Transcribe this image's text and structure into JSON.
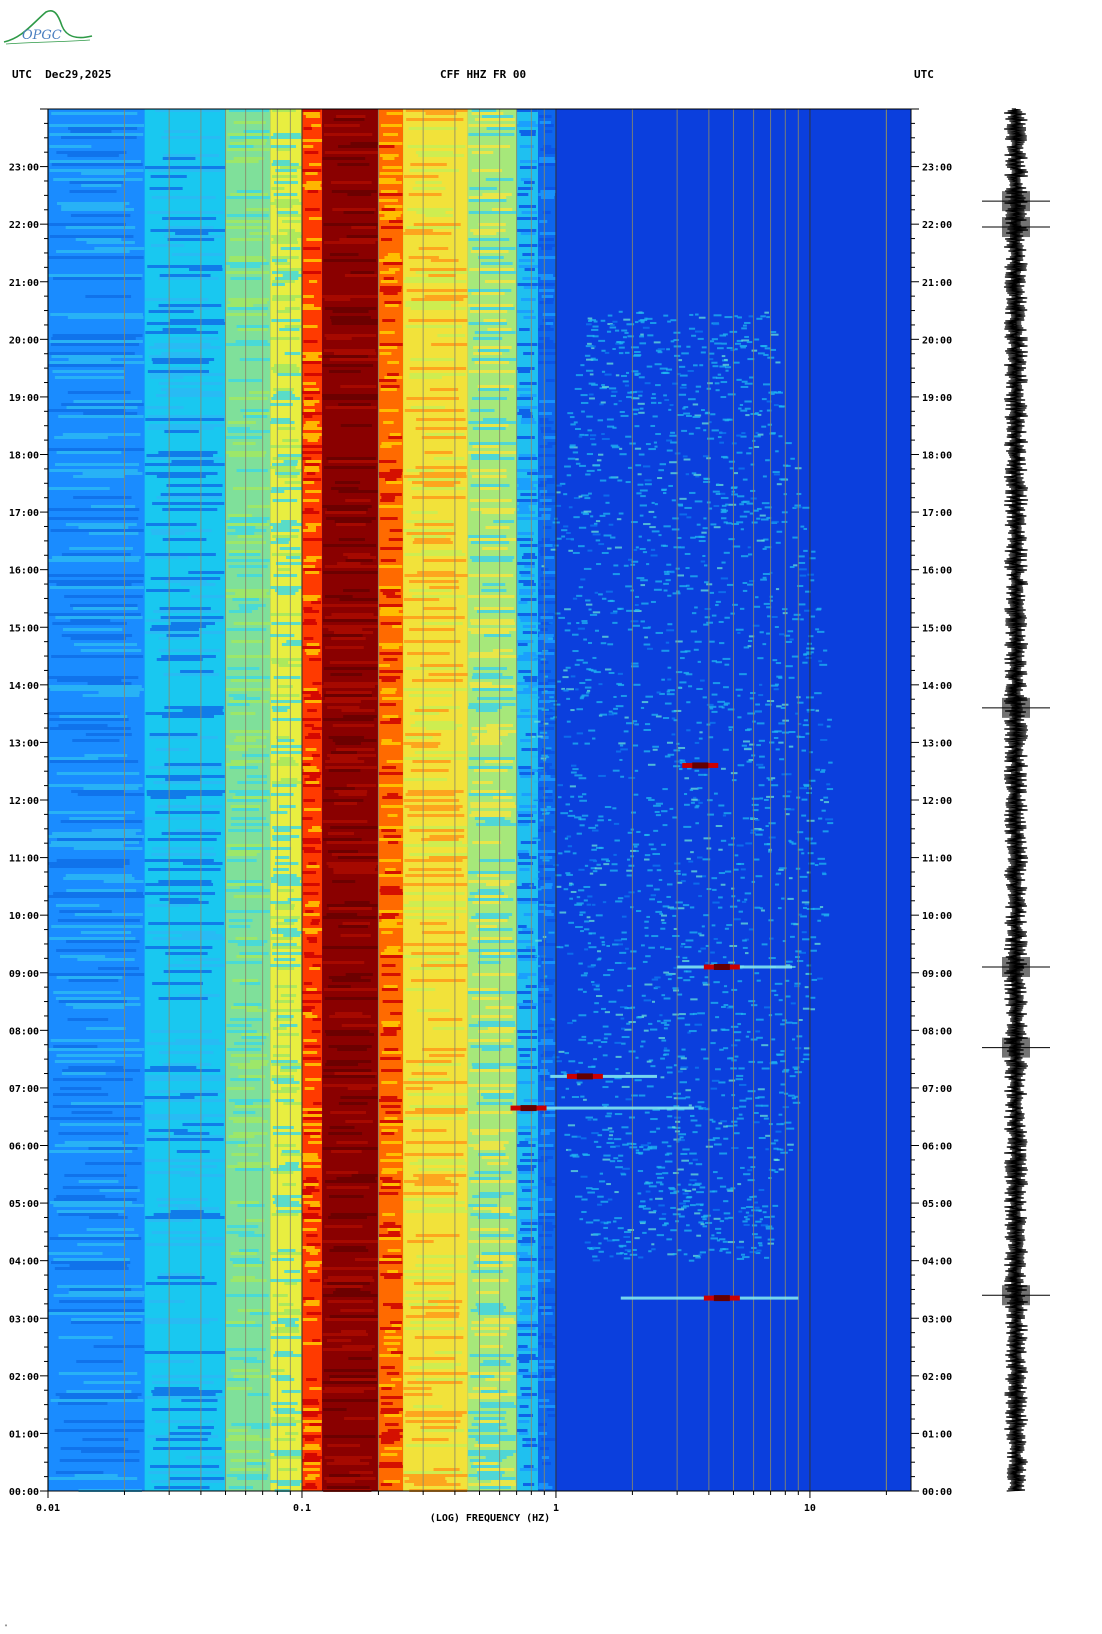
{
  "header": {
    "left_tz": "UTC",
    "date": "Dec29,2025",
    "station": "CFF HHZ FR 00",
    "right_tz": "UTC"
  },
  "logo": {
    "text": "OPGC"
  },
  "chart_data": {
    "type": "heatmap",
    "title": "CFF HHZ FR 00",
    "xlabel": "(LOG) FREQUENCY (HZ)",
    "x_scale": "log",
    "xlim": [
      0.01,
      25
    ],
    "x_tick_labels": [
      "0.01",
      "0.1",
      "1",
      "10"
    ],
    "x_tick_values": [
      0.01,
      0.1,
      1,
      10
    ],
    "y_unit": "hours UTC",
    "ylim": [
      0,
      24
    ],
    "y_tick_labels": [
      "00:00",
      "01:00",
      "02:00",
      "03:00",
      "04:00",
      "05:00",
      "06:00",
      "07:00",
      "08:00",
      "09:00",
      "10:00",
      "11:00",
      "12:00",
      "13:00",
      "14:00",
      "15:00",
      "16:00",
      "17:00",
      "18:00",
      "19:00",
      "20:00",
      "21:00",
      "22:00",
      "23:00"
    ],
    "y_tick_values": [
      0,
      1,
      2,
      3,
      4,
      5,
      6,
      7,
      8,
      9,
      10,
      11,
      12,
      13,
      14,
      15,
      16,
      17,
      18,
      19,
      20,
      21,
      22,
      23
    ],
    "colormap": [
      "#0033cc",
      "#0066ff",
      "#00aaff",
      "#22ddee",
      "#99ee66",
      "#ffee33",
      "#ff9900",
      "#ff3300",
      "#880000"
    ],
    "spectral_bands": [
      {
        "f_min": 0.01,
        "f_max": 0.024,
        "color": "#1a8cff"
      },
      {
        "f_min": 0.024,
        "f_max": 0.05,
        "color": "#19c8f0"
      },
      {
        "f_min": 0.05,
        "f_max": 0.075,
        "color": "#7fe09a"
      },
      {
        "f_min": 0.075,
        "f_max": 0.1,
        "color": "#e8ee40"
      },
      {
        "f_min": 0.1,
        "f_max": 0.12,
        "color": "#ff3a00"
      },
      {
        "f_min": 0.12,
        "f_max": 0.2,
        "color": "#8a0000"
      },
      {
        "f_min": 0.2,
        "f_max": 0.25,
        "color": "#ff6a00"
      },
      {
        "f_min": 0.25,
        "f_max": 0.45,
        "color": "#f2e23a"
      },
      {
        "f_min": 0.45,
        "f_max": 0.7,
        "color": "#a6e87a"
      },
      {
        "f_min": 0.7,
        "f_max": 0.85,
        "color": "#1fc0f0"
      },
      {
        "f_min": 0.85,
        "f_max": 1.0,
        "color": "#0d66ee"
      },
      {
        "f_min": 1.0,
        "f_max": 25,
        "color": "#0b3fdd"
      }
    ],
    "noise_blob": {
      "f_center": 3.0,
      "time_min": 4.0,
      "time_max": 20.5,
      "color": "#20c4f0"
    },
    "events": [
      {
        "time": 3.35,
        "f_min": 1.8,
        "f_max": 9.0,
        "peak_f": 4.5
      },
      {
        "time": 6.65,
        "f_min": 0.75,
        "f_max": 3.5,
        "peak_f": 0.78
      },
      {
        "time": 7.2,
        "f_min": 0.95,
        "f_max": 2.5,
        "peak_f": 1.3
      },
      {
        "time": 9.1,
        "f_min": 3.0,
        "f_max": 8.5,
        "peak_f": 4.5
      },
      {
        "time": 12.6,
        "f_min": 3.3,
        "f_max": 4.2,
        "peak_f": 3.7
      }
    ],
    "seismogram_events": [
      3.4,
      7.7,
      9.1,
      13.6,
      21.95,
      22.4
    ]
  },
  "footer": {
    "corner": "\""
  }
}
